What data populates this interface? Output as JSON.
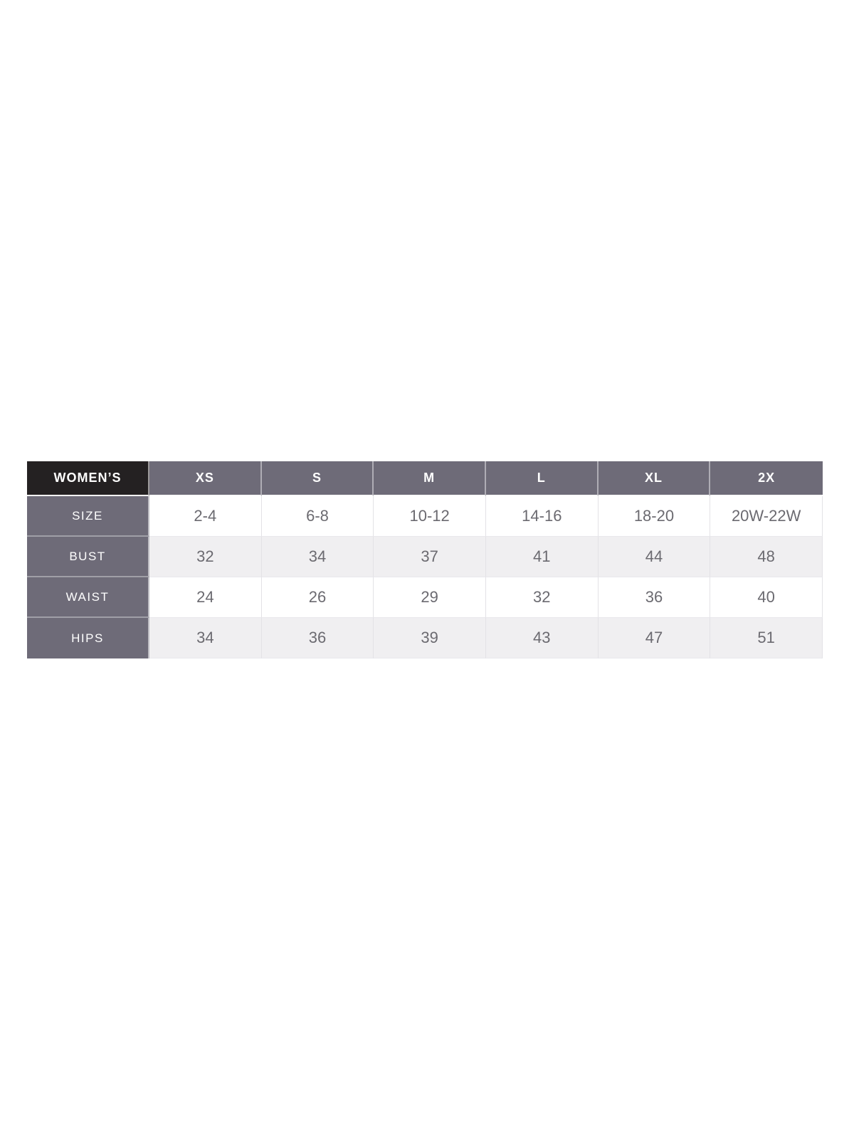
{
  "page": {
    "background": "#ffffff"
  },
  "size_chart": {
    "corner_label": "WOMEN’S",
    "column_headers": [
      "XS",
      "S",
      "M",
      "L",
      "XL",
      "2X"
    ],
    "rows": [
      {
        "label": "SIZE",
        "values": [
          "2-4",
          "6-8",
          "10-12",
          "14-16",
          "18-20",
          "20W-22W"
        ]
      },
      {
        "label": "BUST",
        "values": [
          "32",
          "34",
          "37",
          "41",
          "44",
          "48"
        ]
      },
      {
        "label": "WAIST",
        "values": [
          "24",
          "26",
          "29",
          "32",
          "36",
          "40"
        ]
      },
      {
        "label": "HIPS",
        "values": [
          "34",
          "36",
          "39",
          "43",
          "47",
          "51"
        ]
      }
    ],
    "colors": {
      "corner_bg": "#242122",
      "header_bg": "#6e6b78",
      "header_text": "#ffffff",
      "row_bg": "#ffffff",
      "row_alt_bg": "#f0eff1",
      "data_text": "#6b6a70"
    }
  },
  "chart_data": {
    "type": "table",
    "title": "WOMEN’S size chart",
    "columns": [
      "WOMEN’S",
      "XS",
      "S",
      "M",
      "L",
      "XL",
      "2X"
    ],
    "rows": [
      [
        "SIZE",
        "2-4",
        "6-8",
        "10-12",
        "14-16",
        "18-20",
        "20W-22W"
      ],
      [
        "BUST",
        "32",
        "34",
        "37",
        "41",
        "44",
        "48"
      ],
      [
        "WAIST",
        "24",
        "26",
        "29",
        "32",
        "36",
        "40"
      ],
      [
        "HIPS",
        "34",
        "36",
        "39",
        "43",
        "47",
        "51"
      ]
    ],
    "layout": {
      "grid": true,
      "header_row_bg": "#6e6b78",
      "corner_bg": "#242122",
      "alternating_rows": true
    }
  }
}
